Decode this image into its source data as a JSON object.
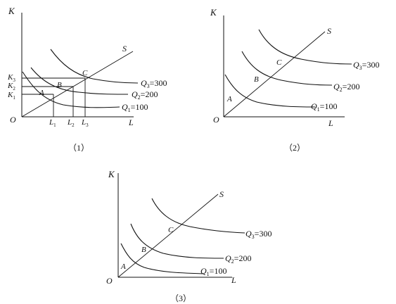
{
  "panels": [
    {
      "caption": "（1）",
      "axis_y": "K",
      "axis_x": "L",
      "origin": "O",
      "ray": "S",
      "points": [
        "A",
        "B",
        "C"
      ],
      "curves": [
        {
          "q": "Q",
          "sub": "3",
          "value": "=300"
        },
        {
          "q": "Q",
          "sub": "2",
          "value": "=200"
        },
        {
          "q": "Q",
          "sub": "1",
          "value": "=100"
        }
      ],
      "k_ticks": [
        {
          "k": "K",
          "sub": "3"
        },
        {
          "k": "K",
          "sub": "2"
        },
        {
          "k": "K",
          "sub": "1"
        }
      ],
      "l_ticks": [
        {
          "l": "L",
          "sub": "1"
        },
        {
          "l": "L",
          "sub": "2"
        },
        {
          "l": "L",
          "sub": "3"
        }
      ]
    },
    {
      "caption": "（2）",
      "axis_y": "K",
      "axis_x": "L",
      "origin": "O",
      "ray": "S",
      "points": [
        "A",
        "B",
        "C"
      ],
      "curves": [
        {
          "q": "Q",
          "sub": "3",
          "value": "=300"
        },
        {
          "q": "Q",
          "sub": "2",
          "value": "=200"
        },
        {
          "q": "Q",
          "sub": "1",
          "value": "=100"
        }
      ]
    },
    {
      "caption": "（3）",
      "axis_y": "K",
      "axis_x": "L",
      "origin": "O",
      "ray": "S",
      "points": [
        "A",
        "B",
        "C"
      ],
      "curves": [
        {
          "q": "Q",
          "sub": "3",
          "value": "=300"
        },
        {
          "q": "Q",
          "sub": "2",
          "value": "=200"
        },
        {
          "q": "Q",
          "sub": "1",
          "value": "=100"
        }
      ]
    }
  ]
}
